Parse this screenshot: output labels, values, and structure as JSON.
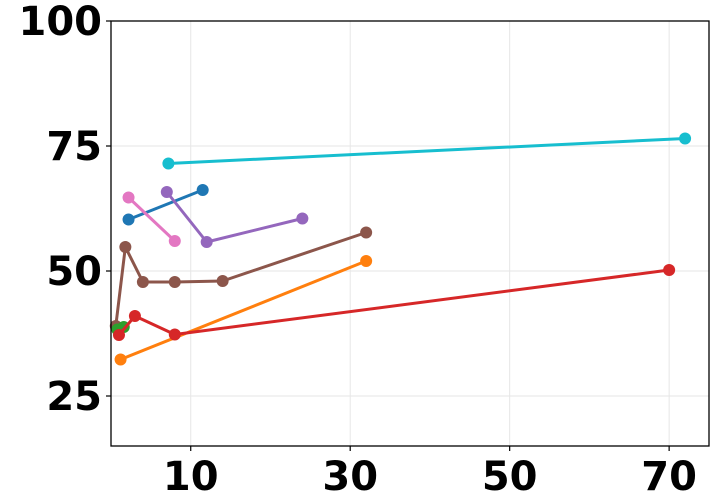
{
  "chart_data": {
    "type": "line",
    "title": "",
    "xlabel": "",
    "ylabel": "",
    "xlim": [
      0,
      75
    ],
    "ylim": [
      15,
      100
    ],
    "grid": true,
    "legend": "none",
    "x_ticks": [
      10,
      30,
      50,
      70
    ],
    "y_ticks": [
      25,
      50,
      75,
      100
    ],
    "x_tick_labels": [
      "10",
      "30",
      "50",
      "70"
    ],
    "y_tick_labels": [
      "25",
      "50",
      "75",
      "100"
    ],
    "series": [
      {
        "color": "#17becf",
        "points": [
          [
            7.2,
            71.5
          ],
          [
            72,
            76.5
          ]
        ]
      },
      {
        "color": "#1f77b4",
        "points": [
          [
            2.2,
            60.3
          ],
          [
            11.5,
            66.2
          ]
        ]
      },
      {
        "color": "#9467bd",
        "points": [
          [
            7.0,
            65.8
          ],
          [
            12.0,
            55.8
          ],
          [
            24.0,
            60.5
          ]
        ]
      },
      {
        "color": "#e377c2",
        "points": [
          [
            2.2,
            64.7
          ],
          [
            8.0,
            56.0
          ]
        ]
      },
      {
        "color": "#8c564b",
        "points": [
          [
            0.6,
            39.0
          ],
          [
            1.8,
            54.8
          ],
          [
            4.0,
            47.8
          ],
          [
            8.0,
            47.8
          ],
          [
            14.0,
            48.0
          ],
          [
            32.0,
            57.7
          ]
        ]
      },
      {
        "color": "#ff7f0e",
        "points": [
          [
            1.2,
            32.3
          ],
          [
            32.0,
            52.0
          ]
        ]
      },
      {
        "color": "#2ca02c",
        "points": [
          [
            0.8,
            38.3
          ],
          [
            1.6,
            38.8
          ]
        ]
      },
      {
        "color": "#d62728",
        "points": [
          [
            1.0,
            37.2
          ],
          [
            3.0,
            41.0
          ],
          [
            8.0,
            37.3
          ],
          [
            70.0,
            50.2
          ]
        ]
      }
    ]
  }
}
